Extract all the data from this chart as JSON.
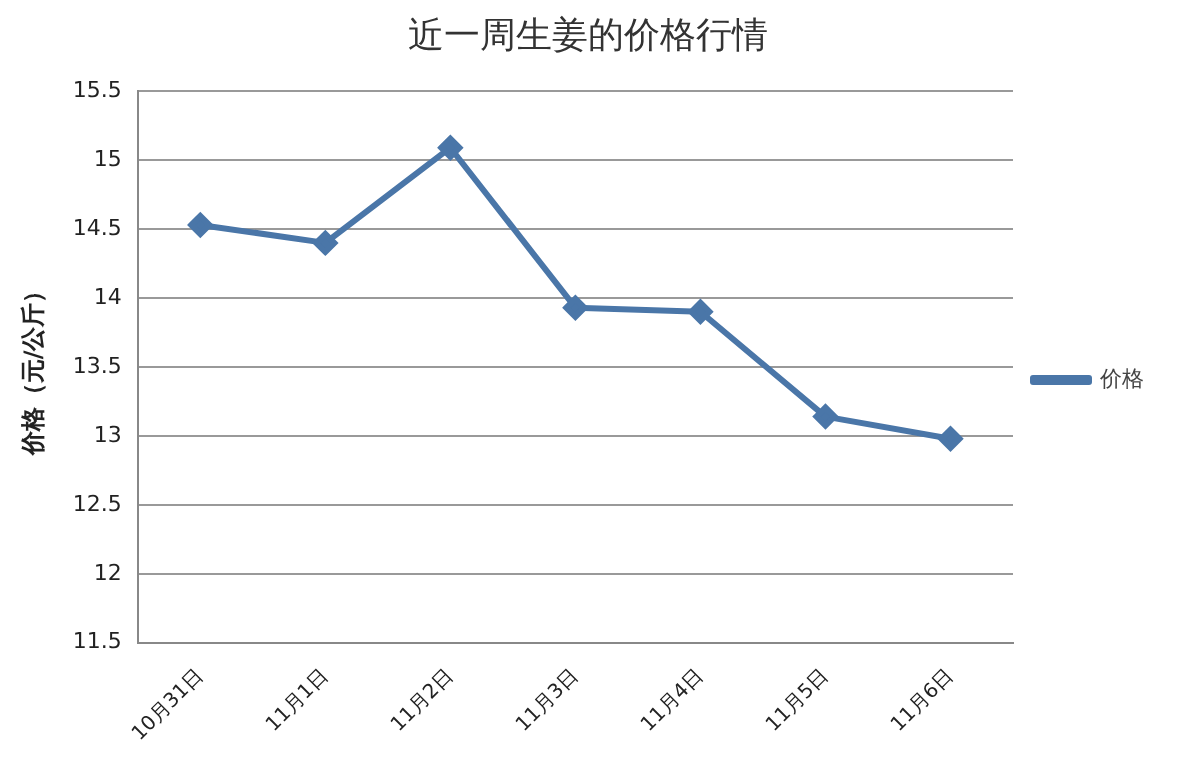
{
  "chart_data": {
    "type": "line",
    "title": "近一周生姜的价格行情",
    "ylabel": "价格（元/公斤）",
    "categories": [
      "10月31日",
      "11月1日",
      "11月2日",
      "11月3日",
      "11月4日",
      "11月5日",
      "11月6日"
    ],
    "series": [
      {
        "name": "价格",
        "color": "#4a76a8",
        "values": [
          14.53,
          14.4,
          15.09,
          13.93,
          13.9,
          13.14,
          12.98
        ]
      }
    ],
    "ylim": [
      11.5,
      15.5
    ],
    "yticks": [
      11.5,
      12,
      12.5,
      13,
      13.5,
      14,
      14.5,
      15,
      15.5
    ],
    "grid": "y",
    "legend": "right",
    "marker": "diamond",
    "line_style": "solid"
  }
}
